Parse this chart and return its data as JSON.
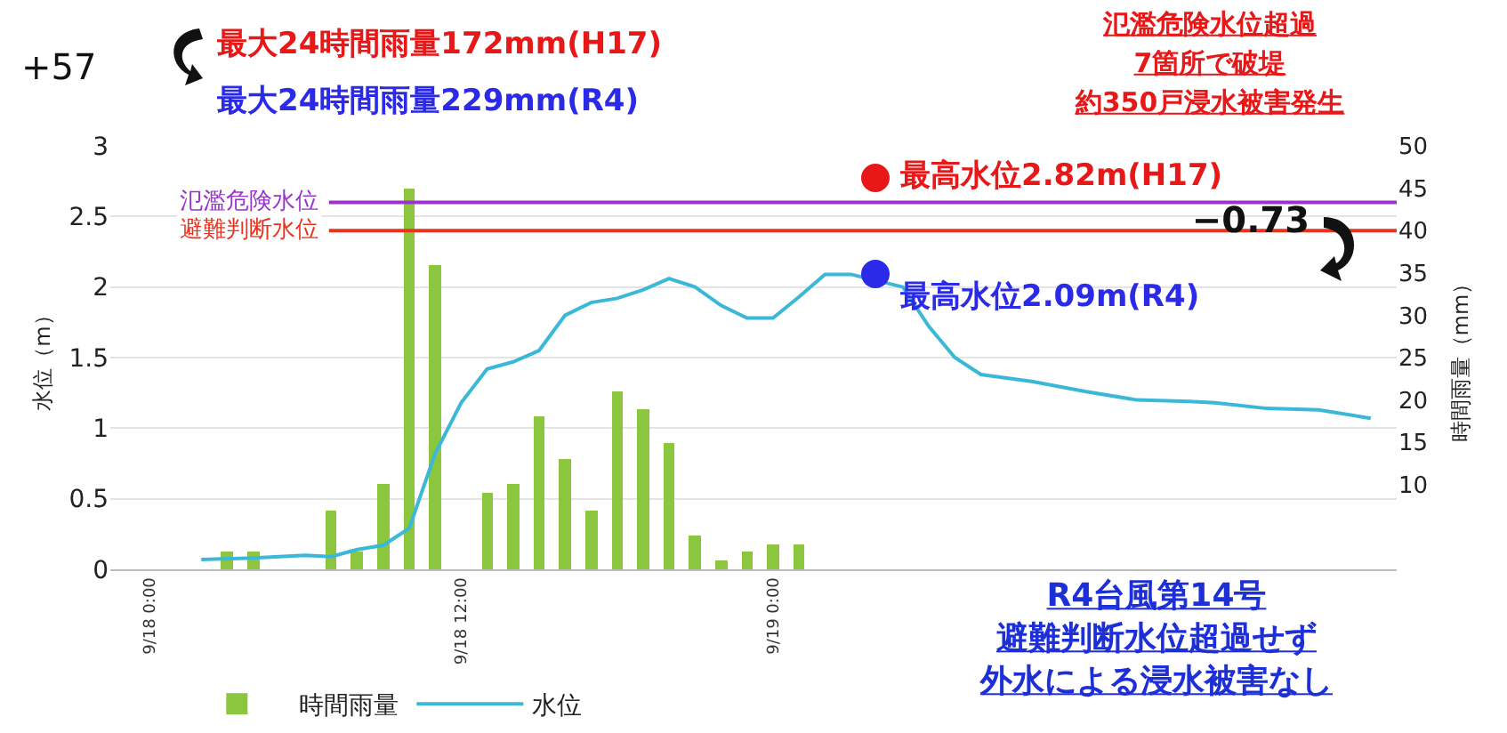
{
  "chart_data": {
    "type": "bar",
    "ylabel": "水位（m）",
    "y2label": "時間雨量（mm）",
    "xlim": [
      "--09-17T22:30",
      "--09-20T00:00"
    ],
    "xticks": [
      {
        "value": "--09-18T00:00",
        "label": "9/18 0:00"
      },
      {
        "value": "--09-18T12:00",
        "label": "9/18 12:00"
      },
      {
        "value": "--09-19T00:00",
        "label": "9/19 0:00"
      }
    ],
    "ylim": [
      0,
      3
    ],
    "yticks": [
      0,
      0.5,
      1,
      1.5,
      2,
      2.5,
      3
    ],
    "y2lim": [
      0,
      50
    ],
    "y2ticks": [
      10,
      15,
      20,
      25,
      30,
      35,
      40,
      45,
      50
    ],
    "series": [
      {
        "name": "時間雨量",
        "axis": "y2",
        "color": "#8cc63f",
        "x": [
          "--09-18T03:00",
          "--09-18T04:00",
          "--09-18T07:00",
          "--09-18T08:00",
          "--09-18T09:00",
          "--09-18T10:00",
          "--09-18T11:00",
          "--09-18T13:00",
          "--09-18T14:00",
          "--09-18T15:00",
          "--09-18T16:00",
          "--09-18T17:00",
          "--09-18T18:00",
          "--09-18T19:00",
          "--09-18T20:00",
          "--09-18T21:00",
          "--09-18T22:00",
          "--09-18T23:00",
          "--09-19T00:00",
          "--09-19T01:00"
        ],
        "values": [
          2,
          2,
          7,
          2,
          10,
          45,
          36,
          9,
          10,
          18,
          13,
          7,
          21,
          19,
          15,
          4,
          1,
          2,
          3,
          3
        ]
      },
      {
        "name": "水位",
        "type": "line",
        "color": "#3bb8d8",
        "x": [
          "--09-18T02:00",
          "--09-18T04:00",
          "--09-18T06:00",
          "--09-18T07:00",
          "--09-18T08:00",
          "--09-18T09:00",
          "--09-18T10:00",
          "--09-18T11:00",
          "--09-18T12:00",
          "--09-18T13:00",
          "--09-18T14:00",
          "--09-18T15:00",
          "--09-18T16:00",
          "--09-18T17:00",
          "--09-18T18:00",
          "--09-18T19:00",
          "--09-18T20:00",
          "--09-18T21:00",
          "--09-18T22:00",
          "--09-18T23:00",
          "--09-19T00:00",
          "--09-19T01:00",
          "--09-19T02:00",
          "--09-19T03:00",
          "--09-19T05:00",
          "--09-19T06:00",
          "--09-19T07:00",
          "--09-19T08:00",
          "--09-19T10:00",
          "--09-19T12:00",
          "--09-19T14:00",
          "--09-19T16:00",
          "--09-19T17:00",
          "--09-19T19:00",
          "--09-19T21:00",
          "--09-19T23:00"
        ],
        "values": [
          0.07,
          0.08,
          0.1,
          0.09,
          0.14,
          0.17,
          0.29,
          0.82,
          1.18,
          1.42,
          1.47,
          1.55,
          1.8,
          1.89,
          1.92,
          1.98,
          2.06,
          2.0,
          1.87,
          1.78,
          1.78,
          1.93,
          2.09,
          2.09,
          2.0,
          1.72,
          1.5,
          1.38,
          1.33,
          1.26,
          1.2,
          1.19,
          1.18,
          1.14,
          1.13,
          1.07
        ]
      }
    ],
    "ref_lines": [
      {
        "axis": "y",
        "value": 2.6,
        "label": "氾濫危険水位",
        "color": "#9933cc"
      },
      {
        "axis": "y",
        "value": 2.4,
        "label": "避難判断水位",
        "color": "#e8331f"
      }
    ],
    "annotations": [
      "+57",
      "最大24時間雨量172mm(H17)",
      "最大24時間雨量229mm(R4)",
      "氾濫危険水位超過",
      "7箇所で破堤",
      "約350戸浸水被害発生",
      "最高水位2.82m(H17)",
      "−0.73",
      "最高水位2.09m(R4)",
      "R4台風第14号",
      "避難判断水位超過せず",
      "外水による浸水被害なし"
    ],
    "grid": "y",
    "legend": "bottom"
  }
}
